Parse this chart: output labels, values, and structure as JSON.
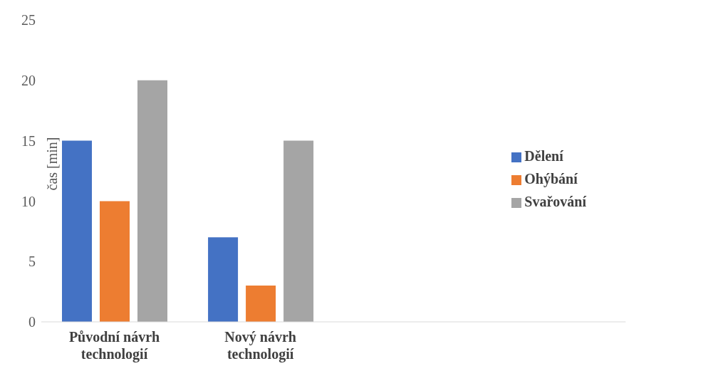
{
  "chart_data": {
    "type": "bar",
    "ylabel": "čas [min]",
    "categories": [
      "Původní návrh technologií",
      "Nový návrh technologií",
      null,
      null
    ],
    "series": [
      {
        "name": "Dělení",
        "color": "#4472c4",
        "values": [
          15,
          7,
          null,
          null
        ]
      },
      {
        "name": "Ohýbání",
        "color": "#ed7d31",
        "values": [
          10,
          3,
          null,
          null
        ]
      },
      {
        "name": "Svařování",
        "color": "#a5a5a5",
        "values": [
          20,
          15,
          null,
          null
        ]
      }
    ],
    "ylim": [
      0,
      25
    ],
    "yticks": [
      0,
      5,
      10,
      15,
      20,
      25
    ],
    "grid": false,
    "legend": "right"
  }
}
